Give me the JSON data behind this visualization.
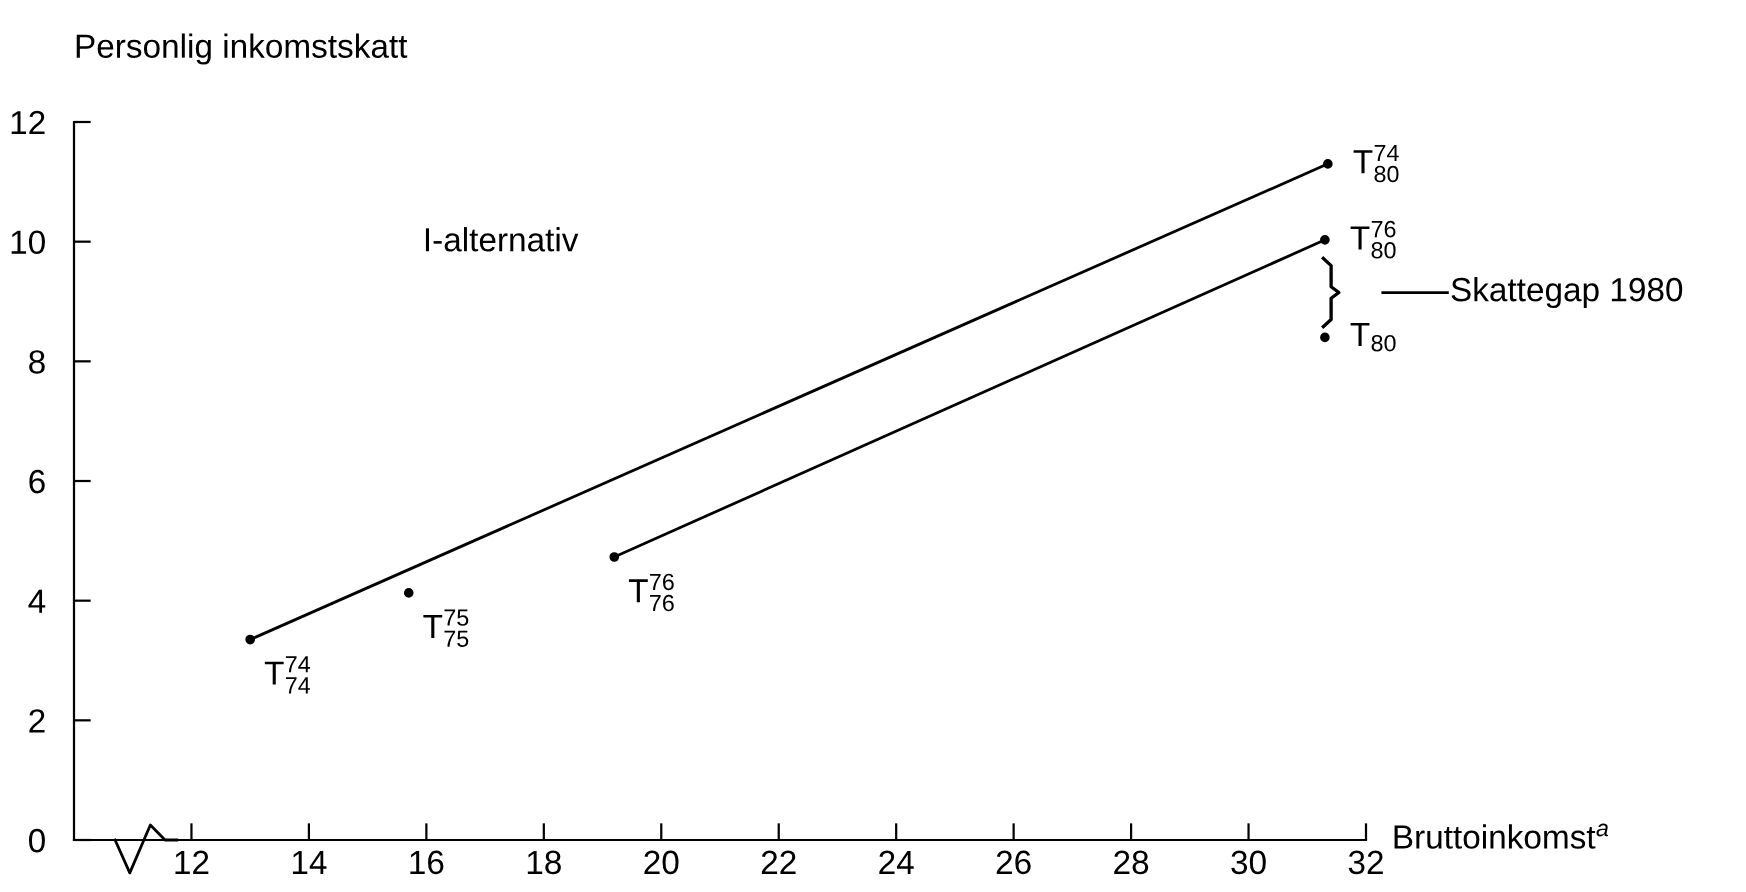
{
  "chart_data": {
    "type": "line",
    "ylabel": "Personlig inkomstskatt",
    "xlabel": "Bruttoinkomst$^{a}$",
    "xlim": [
      10,
      32
    ],
    "xticks": [
      12,
      14,
      16,
      18,
      20,
      22,
      24,
      26,
      28,
      30,
      32
    ],
    "ylim": [
      0,
      12
    ],
    "yticks": [
      0,
      2,
      4,
      6,
      8,
      10,
      12
    ],
    "grid": false,
    "marker": "circle",
    "line_style": "solid",
    "series": [
      {
        "color": "#000000",
        "x": [
          13.0,
          31.35
        ],
        "values": [
          3.35,
          11.3
        ]
      },
      {
        "color": "#000000",
        "x": [
          19.2,
          31.3
        ],
        "values": [
          4.73,
          10.03
        ]
      },
      {
        "type": "scatter",
        "color": "#000000",
        "x": [
          15.7,
          31.3
        ],
        "values": [
          4.13,
          8.4
        ]
      }
    ],
    "annotations": [
      "I-alternativ",
      {
        "text": "T$^{74}$$_{74}$",
        "x": 13.0,
        "y": 3.35
      },
      {
        "text": "T$^{75}$$_{75}$",
        "x": 15.7,
        "y": 4.13
      },
      {
        "text": "T$^{76}$$_{76}$",
        "x": 19.2,
        "y": 4.73
      },
      {
        "text": "T$^{74}$$_{80}$",
        "x": 31.35,
        "y": 11.3
      },
      {
        "text": "T$^{76}$$_{80}$",
        "x": 31.3,
        "y": 10.03
      },
      {
        "text": "T$_{80}$",
        "x": 31.3,
        "y": 8.4
      },
      "Skattegap 1980"
    ]
  }
}
